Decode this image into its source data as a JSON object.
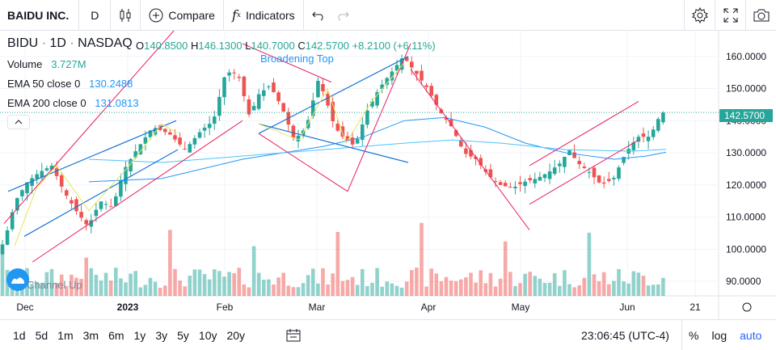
{
  "topbar": {
    "symbol": "BAIDU INC.",
    "interval": "D",
    "compare_label": "Compare",
    "indicators_label": "Indicators"
  },
  "legend": {
    "ticker": "BIDU",
    "interval": "1D",
    "exchange": "NASDAQ",
    "open_label": "O",
    "open": "140.8500",
    "high_label": "H",
    "high": "146.1300",
    "low_label": "L",
    "low": "140.7000",
    "close_label": "C",
    "close": "142.5700",
    "change": "+8.2100 (+6.11%)",
    "volume_label": "Volume",
    "volume": "3.727M",
    "ema50_label": "EMA 50 close 0",
    "ema50": "130.2488",
    "ema200_label": "EMA 200 close 0",
    "ema200": "131.0813"
  },
  "pattern_label": "Broadening Top",
  "last_price": "142.5700",
  "watermark": "Channel Up",
  "chart_data": {
    "type": "candlestick",
    "y_ticks": [
      "160.0000",
      "150.0000",
      "140.0000",
      "130.0000",
      "120.0000",
      "110.0000",
      "100.0000",
      "90.0000"
    ],
    "y_values": [
      160,
      150,
      140,
      130,
      120,
      110,
      100,
      90
    ],
    "x_ticks": [
      "Dec",
      "2023",
      "Feb",
      "Mar",
      "Apr",
      "May",
      "Jun",
      "21"
    ],
    "ylim": [
      86.5,
      168
    ]
  },
  "bottombar": {
    "ranges": [
      "1d",
      "5d",
      "1m",
      "3m",
      "6m",
      "1y",
      "3y",
      "5y",
      "10y",
      "20y"
    ],
    "time": "23:06:45 (UTC-4)",
    "percent": "%",
    "log": "log",
    "auto": "auto"
  },
  "colors": {
    "up": "#26a69a",
    "down": "#ef5350",
    "ema50": "#2196f3",
    "ema200": "#4fc3f7",
    "channel": "#e91e63",
    "pattern": "#2196f3"
  }
}
